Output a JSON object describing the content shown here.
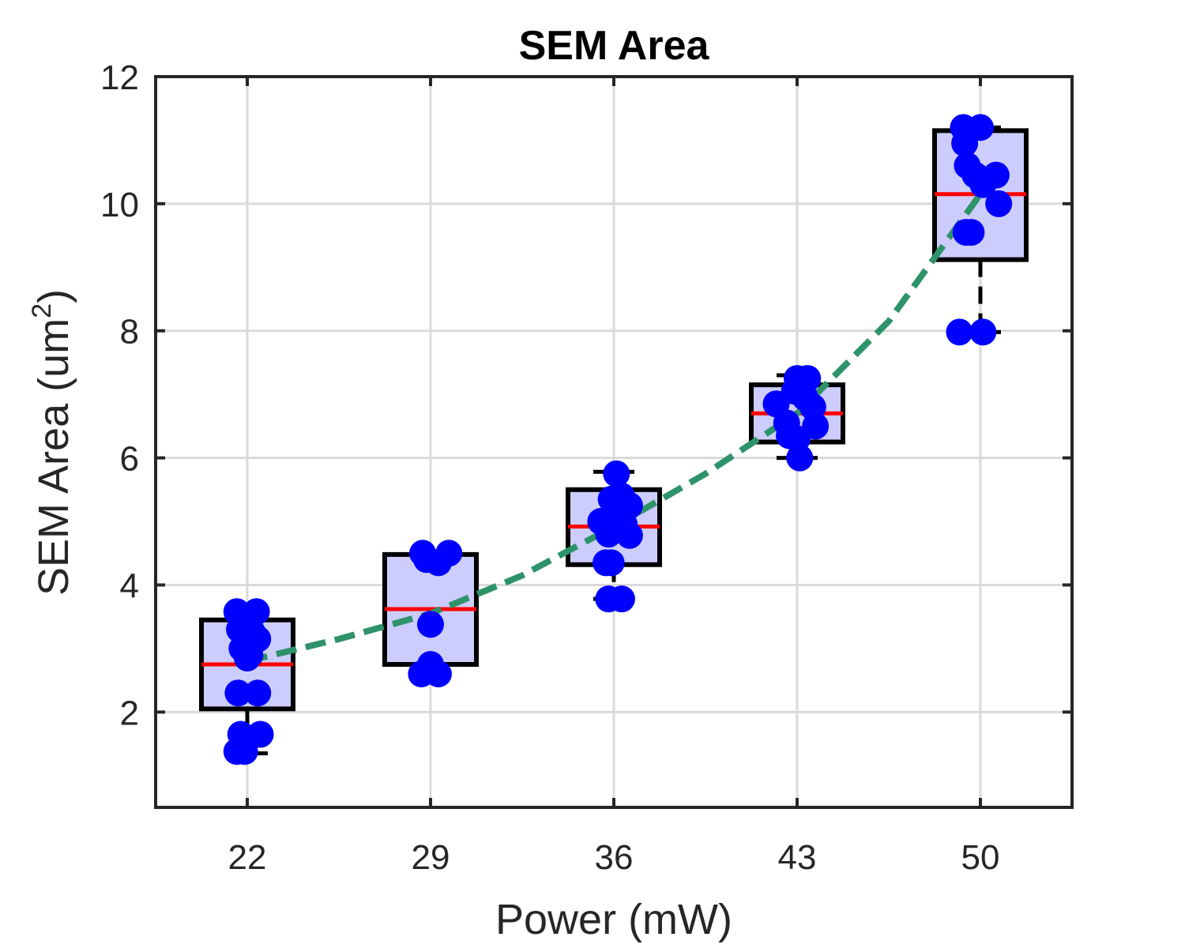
{
  "chart_data": {
    "type": "box",
    "title": "SEM Area",
    "xlabel": "Power (mW)",
    "ylabel": {
      "prefix": "SEM Area (um",
      "sup": "2",
      "suffix": ")"
    },
    "categories": [
      "22",
      "29",
      "36",
      "43",
      "50"
    ],
    "x": [
      22,
      29,
      36,
      43,
      50
    ],
    "xlim": [
      18.5,
      53.5
    ],
    "ylim": [
      0.5,
      12
    ],
    "yticks": [
      2,
      4,
      6,
      8,
      10,
      12
    ],
    "grid": true,
    "boxes": [
      {
        "x": 22,
        "q1": 2.05,
        "median": 2.75,
        "q3": 3.45,
        "whisker_low": 1.35,
        "whisker_high": 3.5
      },
      {
        "x": 29,
        "q1": 2.75,
        "median": 3.62,
        "q3": 4.48,
        "whisker_low": 2.6,
        "whisker_high": 4.5
      },
      {
        "x": 36,
        "q1": 4.32,
        "median": 4.92,
        "q3": 5.5,
        "whisker_low": 3.78,
        "whisker_high": 5.78
      },
      {
        "x": 43,
        "q1": 6.25,
        "median": 6.7,
        "q3": 7.15,
        "whisker_low": 6.0,
        "whisker_high": 7.3
      },
      {
        "x": 50,
        "q1": 9.12,
        "median": 10.15,
        "q3": 11.15,
        "whisker_low": 7.98,
        "whisker_high": 11.2
      }
    ],
    "points": [
      {
        "x": 21.6,
        "y": 3.58
      },
      {
        "x": 22.35,
        "y": 3.58
      },
      {
        "x": 21.7,
        "y": 3.3
      },
      {
        "x": 22.2,
        "y": 3.25
      },
      {
        "x": 22.4,
        "y": 3.15
      },
      {
        "x": 21.8,
        "y": 3.0
      },
      {
        "x": 22.1,
        "y": 2.9
      },
      {
        "x": 22.0,
        "y": 2.85
      },
      {
        "x": 21.65,
        "y": 2.3
      },
      {
        "x": 22.4,
        "y": 2.3
      },
      {
        "x": 21.75,
        "y": 1.65
      },
      {
        "x": 22.5,
        "y": 1.65
      },
      {
        "x": 21.6,
        "y": 1.38
      },
      {
        "x": 21.9,
        "y": 1.38
      },
      {
        "x": 28.7,
        "y": 4.5
      },
      {
        "x": 29.7,
        "y": 4.5
      },
      {
        "x": 28.85,
        "y": 4.4
      },
      {
        "x": 29.3,
        "y": 4.35
      },
      {
        "x": 29.0,
        "y": 3.38
      },
      {
        "x": 28.65,
        "y": 2.6
      },
      {
        "x": 29.0,
        "y": 2.75
      },
      {
        "x": 29.3,
        "y": 2.6
      },
      {
        "x": 36.1,
        "y": 5.75
      },
      {
        "x": 36.3,
        "y": 5.4
      },
      {
        "x": 35.9,
        "y": 5.35
      },
      {
        "x": 36.6,
        "y": 5.25
      },
      {
        "x": 35.5,
        "y": 5.0
      },
      {
        "x": 36.0,
        "y": 5.0
      },
      {
        "x": 36.4,
        "y": 4.95
      },
      {
        "x": 35.8,
        "y": 4.8
      },
      {
        "x": 36.6,
        "y": 4.78
      },
      {
        "x": 35.7,
        "y": 4.35
      },
      {
        "x": 35.9,
        "y": 4.35
      },
      {
        "x": 35.8,
        "y": 3.78
      },
      {
        "x": 36.3,
        "y": 3.78
      },
      {
        "x": 43.0,
        "y": 7.25
      },
      {
        "x": 43.4,
        "y": 7.25
      },
      {
        "x": 42.9,
        "y": 7.05
      },
      {
        "x": 43.3,
        "y": 6.95
      },
      {
        "x": 42.2,
        "y": 6.85
      },
      {
        "x": 43.6,
        "y": 6.8
      },
      {
        "x": 42.6,
        "y": 6.55
      },
      {
        "x": 43.7,
        "y": 6.5
      },
      {
        "x": 42.7,
        "y": 6.35
      },
      {
        "x": 43.0,
        "y": 6.3
      },
      {
        "x": 43.1,
        "y": 6.0
      },
      {
        "x": 49.35,
        "y": 11.2
      },
      {
        "x": 50.0,
        "y": 11.2
      },
      {
        "x": 49.4,
        "y": 10.95
      },
      {
        "x": 49.5,
        "y": 10.6
      },
      {
        "x": 49.8,
        "y": 10.45
      },
      {
        "x": 50.6,
        "y": 10.45
      },
      {
        "x": 50.1,
        "y": 10.3
      },
      {
        "x": 50.7,
        "y": 10.0
      },
      {
        "x": 49.45,
        "y": 9.55
      },
      {
        "x": 49.65,
        "y": 9.55
      },
      {
        "x": 49.2,
        "y": 7.98
      },
      {
        "x": 50.1,
        "y": 7.98
      }
    ],
    "trend": {
      "x": [
        22,
        25.5,
        29,
        32.5,
        36,
        39.5,
        43,
        46.5,
        50
      ],
      "y": [
        2.8,
        3.15,
        3.55,
        4.15,
        4.92,
        5.75,
        6.7,
        8.15,
        10.15
      ]
    },
    "colors": {
      "box_fill": "#cccdfc",
      "box_edge": "#000000",
      "median": "#ff0000",
      "points": "#0000ff",
      "trend": "#2e936a",
      "grid": "#dadada",
      "axis": "#262626"
    }
  }
}
